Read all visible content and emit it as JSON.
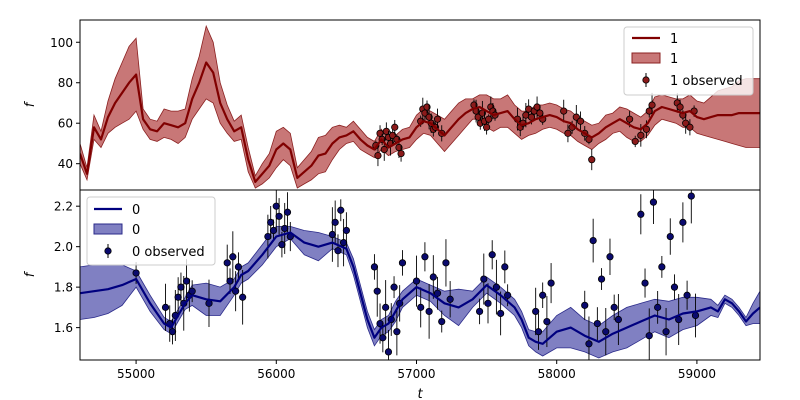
{
  "chart_data": [
    {
      "type": "line",
      "panel": "top",
      "xlabel": "",
      "ylabel": "f",
      "xlim": [
        54600,
        59450
      ],
      "ylim": [
        27,
        111
      ],
      "yticks": [
        40,
        60,
        80,
        100
      ],
      "ytick_labels": [
        "40",
        "60",
        "80",
        "100"
      ],
      "legend": {
        "placement": "top-right",
        "entries": [
          "1",
          "1",
          "1 observed"
        ]
      },
      "colors": {
        "line": "#800000",
        "band": "#b54a4a",
        "points": "#8b1a1a"
      },
      "series": [
        {
          "kind": "mean",
          "name": "1",
          "x": [
            54600,
            54650,
            54700,
            54750,
            54800,
            54850,
            54900,
            54950,
            55000,
            55050,
            55100,
            55150,
            55200,
            55250,
            55300,
            55350,
            55400,
            55450,
            55500,
            55550,
            55600,
            55650,
            55700,
            55750,
            55800,
            55850,
            55900,
            55950,
            56000,
            56050,
            56100,
            56150,
            56200,
            56250,
            56300,
            56350,
            56400,
            56450,
            56500,
            56550,
            56600,
            56650,
            56700,
            56750,
            56800,
            56850,
            56900,
            56950,
            57000,
            57050,
            57100,
            57150,
            57200,
            57250,
            57300,
            57350,
            57400,
            57450,
            57500,
            57550,
            57600,
            57650,
            57700,
            57750,
            57800,
            57850,
            57900,
            57950,
            58000,
            58050,
            58100,
            58150,
            58200,
            58250,
            58300,
            58350,
            58400,
            58450,
            58500,
            58550,
            58600,
            58650,
            58700,
            58750,
            58800,
            58850,
            58900,
            58950,
            59000,
            59050,
            59100,
            59150,
            59200,
            59250,
            59300,
            59350,
            59400,
            59450
          ],
          "y": [
            45,
            35,
            58,
            52,
            63,
            70,
            75,
            80,
            84,
            62,
            57,
            56,
            60,
            59,
            58,
            60,
            72,
            80,
            90,
            85,
            70,
            62,
            56,
            58,
            42,
            31,
            35,
            39,
            47,
            50,
            47,
            33,
            36,
            39,
            44,
            45,
            50,
            53,
            54,
            56,
            52,
            49,
            47,
            52,
            48,
            50,
            52,
            53,
            58,
            61,
            60,
            57,
            54,
            58,
            62,
            65,
            67,
            68,
            66,
            64,
            65,
            66,
            62,
            59,
            60,
            62,
            63,
            64,
            63,
            61,
            60,
            57,
            55,
            53,
            55,
            58,
            60,
            62,
            60,
            58,
            57,
            60,
            66,
            68,
            67,
            66,
            65,
            66,
            63,
            62,
            63,
            64,
            64,
            64,
            65,
            65,
            65,
            65
          ]
        },
        {
          "kind": "band",
          "name": "1",
          "lower": [
            40,
            32,
            52,
            48,
            55,
            58,
            60,
            62,
            66,
            57,
            52,
            51,
            53,
            52,
            50,
            53,
            62,
            67,
            72,
            70,
            60,
            55,
            51,
            52,
            36,
            28,
            30,
            33,
            38,
            42,
            39,
            28,
            30,
            32,
            35,
            36,
            42,
            47,
            50,
            51,
            47,
            45,
            43,
            47,
            44,
            46,
            47,
            48,
            52,
            55,
            54,
            50,
            46,
            50,
            54,
            58,
            62,
            62,
            58,
            56,
            58,
            58,
            55,
            52,
            54,
            55,
            57,
            58,
            57,
            55,
            54,
            51,
            49,
            47,
            50,
            52,
            55,
            56,
            53,
            51,
            51,
            54,
            59,
            62,
            61,
            60,
            58,
            58,
            55,
            54,
            53,
            52,
            51,
            50,
            49,
            48,
            48,
            48
          ],
          "upper": [
            50,
            38,
            64,
            56,
            71,
            82,
            90,
            98,
            102,
            67,
            62,
            61,
            67,
            66,
            66,
            67,
            82,
            93,
            108,
            100,
            80,
            69,
            61,
            64,
            48,
            34,
            40,
            45,
            56,
            58,
            55,
            38,
            42,
            46,
            53,
            54,
            58,
            59,
            58,
            61,
            57,
            53,
            51,
            57,
            52,
            54,
            57,
            58,
            64,
            67,
            66,
            64,
            62,
            66,
            70,
            72,
            72,
            74,
            74,
            72,
            72,
            74,
            69,
            66,
            66,
            69,
            69,
            70,
            69,
            67,
            66,
            63,
            61,
            59,
            60,
            64,
            65,
            68,
            67,
            65,
            63,
            66,
            73,
            74,
            73,
            72,
            72,
            74,
            71,
            70,
            73,
            76,
            77,
            78,
            81,
            82,
            82,
            82
          ]
        },
        {
          "kind": "observed",
          "name": "1 observed",
          "x": [
            56710,
            56725,
            56740,
            56755,
            56770,
            56785,
            56800,
            56815,
            56830,
            56845,
            56860,
            56875,
            56890,
            57030,
            57045,
            57060,
            57075,
            57090,
            57105,
            57120,
            57135,
            57150,
            57180,
            57410,
            57425,
            57440,
            57455,
            57470,
            57485,
            57500,
            57515,
            57530,
            57545,
            57560,
            57720,
            57740,
            57760,
            57780,
            57800,
            57820,
            57840,
            57860,
            57880,
            57900,
            58050,
            58080,
            58110,
            58140,
            58170,
            58200,
            58230,
            58250,
            58520,
            58560,
            58600,
            58640,
            58660,
            58680,
            58860,
            58880,
            58900,
            58920,
            58950,
            58980
          ],
          "y": [
            49,
            44,
            55,
            52,
            47,
            56,
            53,
            50,
            54,
            58,
            52,
            48,
            45,
            61,
            67,
            65,
            68,
            63,
            60,
            57,
            58,
            62,
            55,
            69,
            66,
            63,
            60,
            65,
            61,
            58,
            62,
            68,
            66,
            64,
            62,
            58,
            60,
            64,
            67,
            63,
            66,
            68,
            65,
            62,
            66,
            55,
            58,
            63,
            61,
            55,
            52,
            42,
            62,
            51,
            54,
            57,
            66,
            69,
            70,
            68,
            64,
            60,
            58,
            66
          ]
        }
      ]
    },
    {
      "type": "line",
      "panel": "bottom",
      "xlabel": "t",
      "ylabel": "f",
      "xlim": [
        54600,
        59450
      ],
      "ylim": [
        1.44,
        2.28
      ],
      "yticks": [
        1.6,
        1.8,
        2.0,
        2.2
      ],
      "ytick_labels": [
        "1.6",
        "1.8",
        "2.0",
        "2.2"
      ],
      "xticks": [
        55000,
        56000,
        57000,
        58000,
        59000
      ],
      "xtick_labels": [
        "55000",
        "56000",
        "57000",
        "58000",
        "59000"
      ],
      "legend": {
        "placement": "top-left",
        "entries": [
          "0",
          "0",
          "0 observed"
        ]
      },
      "colors": {
        "line": "#00007f",
        "band": "#4a4aa8",
        "points": "#0a0a6e"
      },
      "series": [
        {
          "kind": "mean",
          "name": "0",
          "x": [
            54600,
            54700,
            54800,
            54900,
            55000,
            55100,
            55200,
            55250,
            55300,
            55350,
            55400,
            55500,
            55600,
            55700,
            55750,
            55800,
            55900,
            56000,
            56100,
            56200,
            56300,
            56400,
            56500,
            56550,
            56600,
            56650,
            56700,
            56750,
            56800,
            56850,
            56900,
            57000,
            57100,
            57200,
            57300,
            57400,
            57500,
            57600,
            57700,
            57750,
            57800,
            57850,
            57900,
            58000,
            58100,
            58200,
            58300,
            58400,
            58500,
            58600,
            58700,
            58800,
            58900,
            59000,
            59100,
            59150,
            59200,
            59250,
            59300,
            59350,
            59400,
            59450
          ],
          "y": [
            1.77,
            1.78,
            1.79,
            1.81,
            1.84,
            1.72,
            1.62,
            1.6,
            1.66,
            1.72,
            1.76,
            1.74,
            1.73,
            1.8,
            1.86,
            1.88,
            1.96,
            2.05,
            2.07,
            2.02,
            2.0,
            2.02,
            1.99,
            1.9,
            1.77,
            1.64,
            1.55,
            1.6,
            1.62,
            1.68,
            1.74,
            1.8,
            1.77,
            1.72,
            1.7,
            1.74,
            1.81,
            1.76,
            1.7,
            1.64,
            1.55,
            1.53,
            1.52,
            1.58,
            1.6,
            1.56,
            1.53,
            1.57,
            1.6,
            1.63,
            1.66,
            1.64,
            1.67,
            1.68,
            1.7,
            1.68,
            1.74,
            1.72,
            1.68,
            1.63,
            1.67,
            1.7
          ]
        },
        {
          "kind": "band",
          "name": "0",
          "lower": [
            1.64,
            1.65,
            1.67,
            1.71,
            1.8,
            1.68,
            1.59,
            1.57,
            1.63,
            1.69,
            1.71,
            1.66,
            1.66,
            1.76,
            1.82,
            1.84,
            1.91,
            2.0,
            2.04,
            1.96,
            1.93,
            1.99,
            1.96,
            1.86,
            1.73,
            1.6,
            1.51,
            1.56,
            1.58,
            1.63,
            1.7,
            1.76,
            1.73,
            1.66,
            1.61,
            1.7,
            1.77,
            1.72,
            1.66,
            1.6,
            1.51,
            1.48,
            1.46,
            1.5,
            1.5,
            1.48,
            1.45,
            1.48,
            1.5,
            1.54,
            1.58,
            1.55,
            1.59,
            1.61,
            1.66,
            1.65,
            1.72,
            1.7,
            1.66,
            1.61,
            1.62,
            1.62
          ],
          "upper": [
            1.9,
            1.91,
            1.91,
            1.91,
            1.88,
            1.76,
            1.65,
            1.63,
            1.69,
            1.75,
            1.81,
            1.82,
            1.8,
            1.84,
            1.9,
            1.92,
            2.01,
            2.1,
            2.1,
            2.08,
            2.07,
            2.05,
            2.02,
            1.94,
            1.81,
            1.68,
            1.59,
            1.64,
            1.66,
            1.73,
            1.78,
            1.84,
            1.81,
            1.78,
            1.79,
            1.78,
            1.85,
            1.8,
            1.74,
            1.68,
            1.59,
            1.58,
            1.58,
            1.66,
            1.7,
            1.64,
            1.61,
            1.66,
            1.7,
            1.72,
            1.74,
            1.73,
            1.75,
            1.75,
            1.74,
            1.71,
            1.76,
            1.74,
            1.7,
            1.65,
            1.72,
            1.78
          ]
        },
        {
          "kind": "observed",
          "name": "0 observed",
          "x": [
            55000,
            55210,
            55240,
            55260,
            55280,
            55300,
            55320,
            55340,
            55360,
            55380,
            55400,
            55520,
            55650,
            55670,
            55690,
            55710,
            55730,
            55760,
            55940,
            55960,
            55980,
            56000,
            56020,
            56040,
            56060,
            56080,
            56100,
            56400,
            56420,
            56440,
            56460,
            56480,
            56500,
            56700,
            56720,
            56740,
            56760,
            56780,
            56800,
            56820,
            56840,
            56860,
            56880,
            56900,
            57000,
            57030,
            57060,
            57090,
            57120,
            57150,
            57180,
            57210,
            57240,
            57450,
            57480,
            57510,
            57540,
            57570,
            57600,
            57630,
            57650,
            57850,
            57870,
            57900,
            57930,
            57960,
            58200,
            58230,
            58260,
            58290,
            58320,
            58350,
            58380,
            58410,
            58440,
            58600,
            58630,
            58660,
            58690,
            58720,
            58750,
            58780,
            58810,
            58840,
            58870,
            58900,
            58930,
            58960,
            58990
          ],
          "y": [
            1.87,
            1.7,
            1.62,
            1.58,
            1.66,
            1.75,
            1.8,
            1.72,
            1.83,
            1.76,
            1.78,
            1.72,
            1.92,
            1.83,
            1.95,
            1.78,
            1.9,
            1.75,
            2.05,
            2.12,
            2.08,
            2.2,
            2.15,
            2.01,
            2.09,
            2.17,
            2.05,
            2.06,
            2.12,
            1.98,
            2.18,
            2.02,
            2.08,
            1.9,
            1.78,
            1.62,
            1.55,
            1.7,
            1.48,
            1.64,
            1.8,
            1.58,
            1.72,
            1.92,
            1.83,
            1.7,
            1.95,
            1.68,
            1.85,
            1.77,
            1.63,
            1.92,
            1.74,
            1.68,
            1.84,
            1.72,
            1.96,
            1.8,
            1.67,
            1.9,
            1.76,
            1.68,
            1.58,
            1.76,
            1.63,
            1.82,
            1.71,
            1.52,
            2.03,
            1.62,
            1.84,
            1.58,
            1.95,
            1.7,
            1.64,
            2.16,
            1.82,
            1.56,
            2.22,
            1.7,
            1.9,
            1.58,
            2.05,
            1.8,
            1.64,
            2.12,
            1.76,
            2.25,
            1.66
          ]
        }
      ]
    }
  ]
}
